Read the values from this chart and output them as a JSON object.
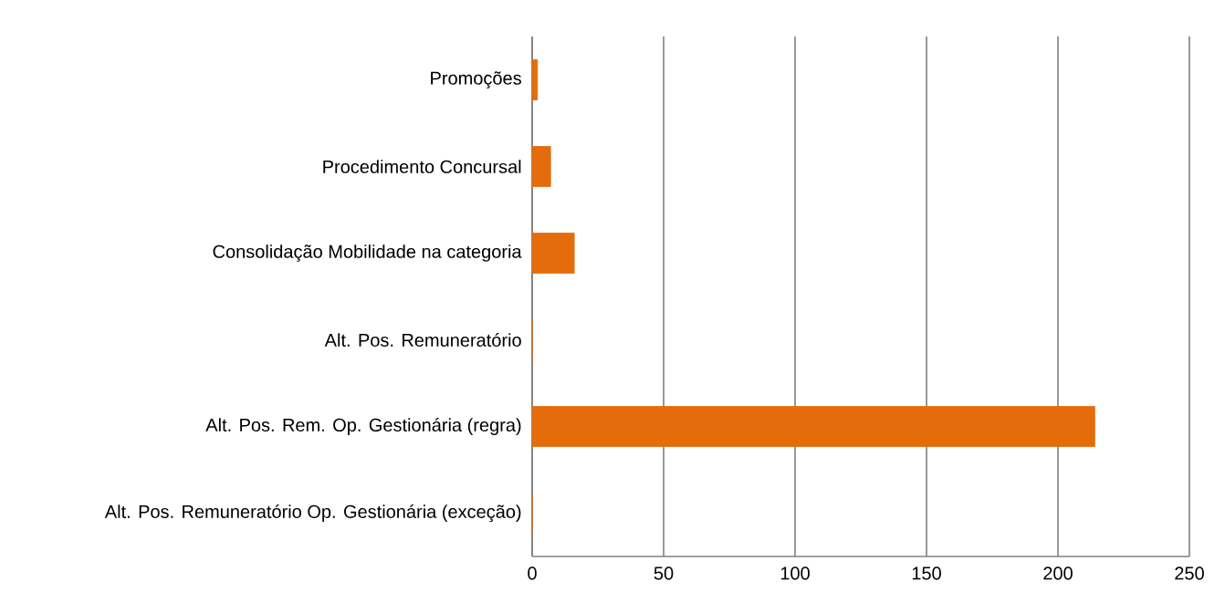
{
  "chart_data": {
    "type": "bar",
    "orientation": "horizontal",
    "categories": [
      "Promoções",
      "Procedimento Concursal",
      "Consolidação Mobilidade na categoria",
      "Alt. Pos. Remuneratório",
      "Alt. Pos. Rem. Op. Gestionária (regra)",
      "Alt. Pos. Remuneratório Op. Gestionária (exceção)"
    ],
    "values": [
      2,
      7,
      16,
      0,
      214,
      0
    ],
    "color": "#e46c0a",
    "xlim": [
      0,
      250
    ],
    "xticks": [
      0,
      50,
      100,
      150,
      200,
      250
    ],
    "grid": "x"
  }
}
